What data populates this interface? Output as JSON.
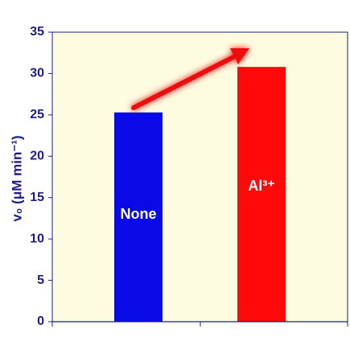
{
  "chart_data": {
    "type": "bar",
    "y_label": "v₀ (μM min⁻¹)",
    "categories": [
      "None",
      "Al³⁺"
    ],
    "values": [
      25.3,
      30.8
    ],
    "colors": [
      "#0a0ae6",
      "#ff0a0a"
    ],
    "ylim": [
      0,
      35
    ],
    "yticks": [
      0,
      5,
      10,
      15,
      20,
      25,
      30,
      35
    ],
    "grid": false
  }
}
